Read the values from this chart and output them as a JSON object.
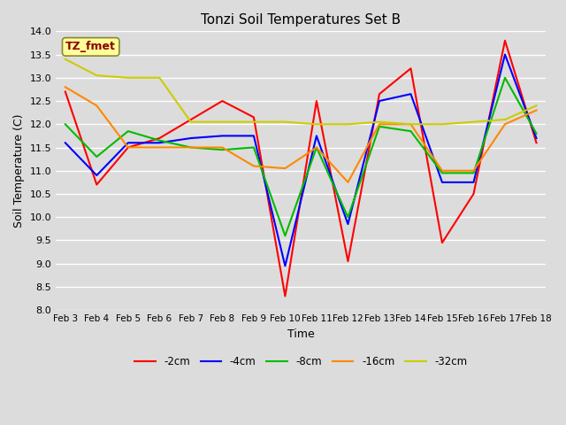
{
  "title": "Tonzi Soil Temperatures Set B",
  "xlabel": "Time",
  "ylabel": "Soil Temperature (C)",
  "ylim": [
    8.0,
    14.0
  ],
  "yticks": [
    8.0,
    8.5,
    9.0,
    9.5,
    10.0,
    10.5,
    11.0,
    11.5,
    12.0,
    12.5,
    13.0,
    13.5,
    14.0
  ],
  "x_labels": [
    "Feb 3",
    "Feb 4",
    "Feb 5",
    "Feb 6",
    "Feb 7",
    "Feb 8",
    "Feb 9",
    "Feb 10",
    "Feb 11",
    "Feb 12",
    "Feb 13",
    "Feb 14",
    "Feb 15",
    "Feb 16",
    "Feb 17",
    "Feb 18"
  ],
  "annotation_label": "TZ_fmet",
  "annotation_color": "#8B0000",
  "annotation_bg": "#FFFF99",
  "plot_bg": "#DCDCDC",
  "grid_color": "#FFFFFF",
  "series": [
    {
      "label": "-2cm",
      "color": "#FF0000",
      "data": [
        12.7,
        10.7,
        11.5,
        11.7,
        12.1,
        12.5,
        12.15,
        8.3,
        12.5,
        9.05,
        12.65,
        13.2,
        9.45,
        10.5,
        13.8,
        11.6
      ]
    },
    {
      "label": "-4cm",
      "color": "#0000FF",
      "data": [
        11.6,
        10.9,
        11.6,
        11.6,
        11.7,
        11.75,
        11.75,
        8.95,
        11.75,
        9.85,
        12.5,
        12.65,
        10.75,
        10.75,
        13.5,
        11.7
      ]
    },
    {
      "label": "-8cm",
      "color": "#00BB00",
      "data": [
        12.0,
        11.3,
        11.85,
        11.65,
        11.5,
        11.45,
        11.5,
        9.6,
        11.5,
        10.0,
        11.95,
        11.85,
        10.95,
        10.95,
        13.0,
        11.8
      ]
    },
    {
      "label": "-16cm",
      "color": "#FF8800",
      "data": [
        12.8,
        12.4,
        11.5,
        11.5,
        11.5,
        11.5,
        11.1,
        11.05,
        11.5,
        10.75,
        12.0,
        12.0,
        11.0,
        11.0,
        12.0,
        12.3
      ]
    },
    {
      "label": "-32cm",
      "color": "#CCCC00",
      "data": [
        13.4,
        13.05,
        13.0,
        13.0,
        12.05,
        12.05,
        12.05,
        12.05,
        12.0,
        12.0,
        12.05,
        12.0,
        12.0,
        12.05,
        12.1,
        12.4
      ]
    }
  ]
}
